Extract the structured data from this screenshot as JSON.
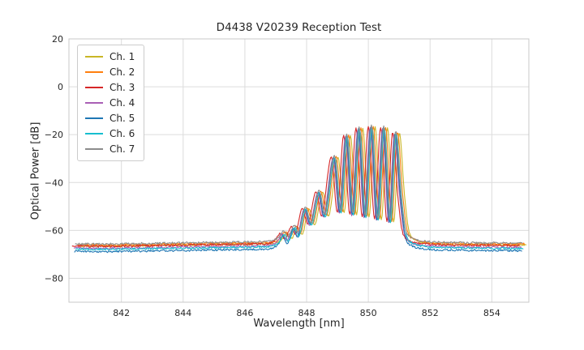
{
  "chart_data": {
    "type": "line",
    "title": "D4438 V20239 Reception Test",
    "xlabel": "Wavelength [nm]",
    "ylabel": "Optical Power [dB]",
    "xlim": [
      840.3,
      855.2
    ],
    "ylim": [
      -90,
      20
    ],
    "xticks": [
      842,
      844,
      846,
      848,
      850,
      852,
      854
    ],
    "yticks": [
      20,
      0,
      -20,
      -40,
      -60,
      -80
    ],
    "grid": true,
    "legend_position": "upper-left",
    "noise_db": 0.4,
    "sample_step_nm": 0.025,
    "base_curve_points": [
      [
        840.5,
        -66.8
      ],
      [
        841.5,
        -66.9
      ],
      [
        842.5,
        -66.7
      ],
      [
        843.5,
        -66.5
      ],
      [
        844.5,
        -66.3
      ],
      [
        845.5,
        -66.1
      ],
      [
        846.4,
        -65.9
      ],
      [
        846.9,
        -65.5
      ],
      [
        847.1,
        -63.8
      ],
      [
        847.25,
        -61.2
      ],
      [
        847.4,
        -63.6
      ],
      [
        847.6,
        -58.8
      ],
      [
        847.75,
        -61.5
      ],
      [
        847.95,
        -51.0
      ],
      [
        848.15,
        -57.5
      ],
      [
        848.4,
        -44.0
      ],
      [
        848.6,
        -54.0
      ],
      [
        848.9,
        -29.5
      ],
      [
        849.1,
        -52.5
      ],
      [
        849.3,
        -20.5
      ],
      [
        849.5,
        -53.5
      ],
      [
        849.7,
        -17.5
      ],
      [
        849.9,
        -54.5
      ],
      [
        850.1,
        -16.8
      ],
      [
        850.3,
        -55.5
      ],
      [
        850.5,
        -17.2
      ],
      [
        850.7,
        -56.5
      ],
      [
        850.88,
        -19.5
      ],
      [
        851.05,
        -45.0
      ],
      [
        851.2,
        -60.5
      ],
      [
        851.45,
        -64.5
      ],
      [
        851.9,
        -65.8
      ],
      [
        852.6,
        -66.2
      ],
      [
        853.6,
        -66.4
      ],
      [
        855.0,
        -66.5
      ]
    ],
    "series": [
      {
        "name": "Ch. 1",
        "color": "#c9b626",
        "x_shift": 0.12,
        "y_offset": 0.0,
        "floor_offset": 0.3
      },
      {
        "name": "Ch. 2",
        "color": "#ff7f0e",
        "x_shift": 0.06,
        "y_offset": 0.3,
        "floor_offset": 0.5
      },
      {
        "name": "Ch. 3",
        "color": "#d62728",
        "x_shift": -0.1,
        "y_offset": 0.2,
        "floor_offset": 0.0
      },
      {
        "name": "Ch. 4",
        "color": "#a95fb5",
        "x_shift": -0.04,
        "y_offset": -0.3,
        "floor_offset": -0.3
      },
      {
        "name": "Ch. 5",
        "color": "#1f77b4",
        "x_shift": -0.02,
        "y_offset": 0.0,
        "floor_offset": -2.0
      },
      {
        "name": "Ch. 6",
        "color": "#17becf",
        "x_shift": 0.02,
        "y_offset": -0.2,
        "floor_offset": -0.8
      },
      {
        "name": "Ch. 7",
        "color": "#8c8c8c",
        "x_shift": 0.0,
        "y_offset": 0.8,
        "floor_offset": 0.4
      }
    ]
  }
}
